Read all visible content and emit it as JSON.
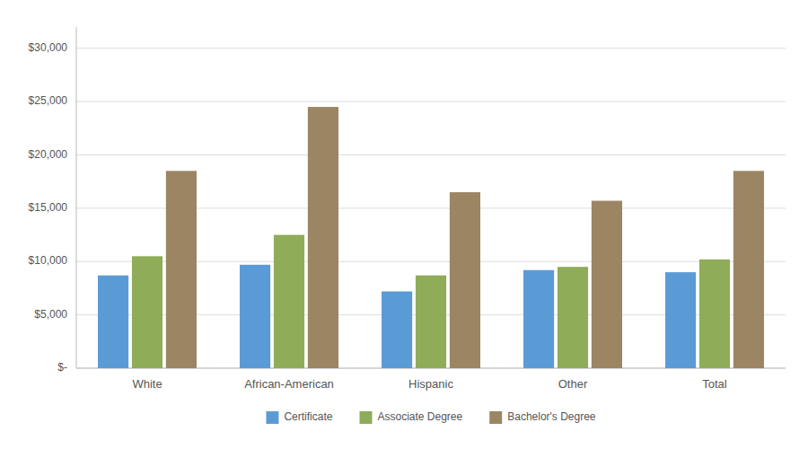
{
  "chart_data": {
    "type": "bar",
    "categories": [
      "White",
      "African-American",
      "Hispanic",
      "Other",
      "Total"
    ],
    "series": [
      {
        "name": "Certificate",
        "color": "#5b9bd5",
        "values": [
          8700,
          9700,
          7200,
          9200,
          9000
        ]
      },
      {
        "name": "Associate Degree",
        "color": "#8fac58",
        "values": [
          10500,
          12500,
          8700,
          9500,
          10200
        ]
      },
      {
        "name": "Bachelor's Degree",
        "color": "#9c8563",
        "values": [
          18500,
          24500,
          16500,
          15700,
          18500
        ]
      }
    ],
    "ylim": [
      0,
      32000
    ],
    "yticks": [
      {
        "value": 0,
        "label": "$-"
      },
      {
        "value": 5000,
        "label": "$5,000"
      },
      {
        "value": 10000,
        "label": "$10,000"
      },
      {
        "value": 15000,
        "label": "$15,000"
      },
      {
        "value": 20000,
        "label": "$20,000"
      },
      {
        "value": 25000,
        "label": "$25,000"
      },
      {
        "value": 30000,
        "label": "$30,000"
      }
    ],
    "grid": true,
    "legend": "bottom"
  }
}
